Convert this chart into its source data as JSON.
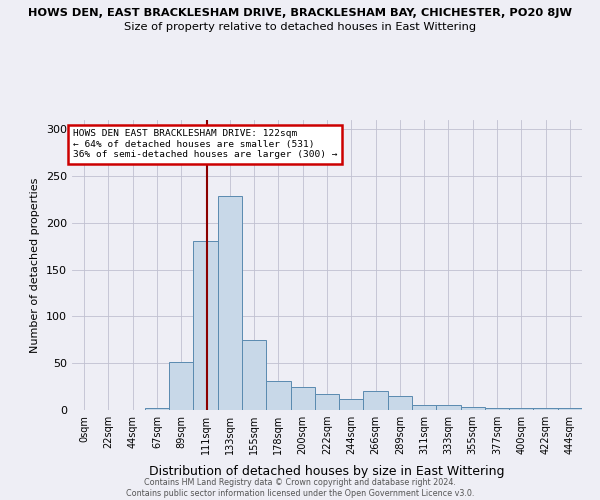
{
  "title_line1": "HOWS DEN, EAST BRACKLESHAM DRIVE, BRACKLESHAM BAY, CHICHESTER, PO20 8JW",
  "title_line2": "Size of property relative to detached houses in East Wittering",
  "xlabel": "Distribution of detached houses by size in East Wittering",
  "ylabel": "Number of detached properties",
  "footnote": "Contains HM Land Registry data © Crown copyright and database right 2024.\nContains public sector information licensed under the Open Government Licence v3.0.",
  "bin_labels": [
    "0sqm",
    "22sqm",
    "44sqm",
    "67sqm",
    "89sqm",
    "111sqm",
    "133sqm",
    "155sqm",
    "178sqm",
    "200sqm",
    "222sqm",
    "244sqm",
    "266sqm",
    "289sqm",
    "311sqm",
    "333sqm",
    "355sqm",
    "377sqm",
    "400sqm",
    "422sqm",
    "444sqm"
  ],
  "bar_values": [
    0,
    0,
    0,
    2,
    51,
    181,
    229,
    75,
    31,
    25,
    17,
    12,
    20,
    15,
    5,
    5,
    3,
    2,
    2,
    2,
    2
  ],
  "bar_color": "#c8d8e8",
  "bar_edge_color": "#5a8ab0",
  "property_line_value": 122,
  "property_line_color": "#8b0000",
  "annotation_box_text": "HOWS DEN EAST BRACKLESHAM DRIVE: 122sqm\n← 64% of detached houses are smaller (531)\n36% of semi-detached houses are larger (300) →",
  "annotation_box_color": "#ffffff",
  "annotation_box_edge_color": "#cc0000",
  "ylim": [
    0,
    310
  ],
  "yticks": [
    0,
    50,
    100,
    150,
    200,
    250,
    300
  ],
  "bin_width": 22,
  "background_color": "#eeeef5"
}
